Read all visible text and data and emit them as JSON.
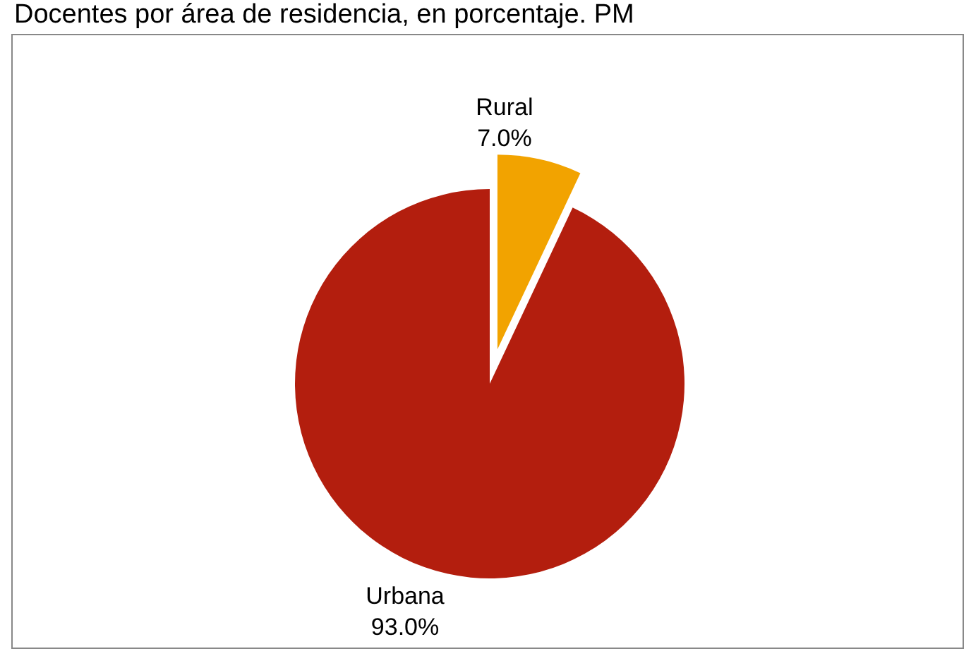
{
  "chart_data": {
    "type": "pie",
    "title": "Docentes por área de residencia, en porcentaje. PM",
    "categories": [
      "Rural",
      "Urbana"
    ],
    "values": [
      7.0,
      93.0
    ],
    "value_labels": [
      "7.0%",
      "93.0%"
    ],
    "colors": [
      "#f2a300",
      "#b31e0e"
    ]
  }
}
